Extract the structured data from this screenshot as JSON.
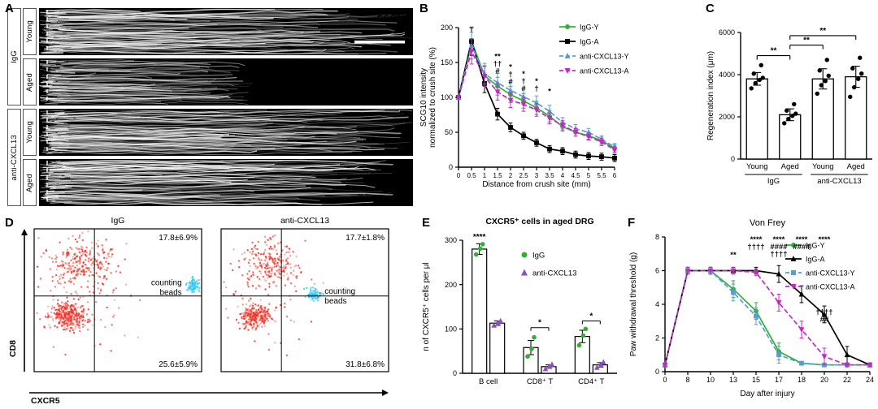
{
  "palette": {
    "green": "#2eb135",
    "black": "#000000",
    "blue": "#5b9bd5",
    "magenta": "#c527c5",
    "cyan": "#29c5f6",
    "red": "#ee3124",
    "purple": "#8f4fc4"
  },
  "panels": {
    "A": {
      "label": "A",
      "stain": "SCG10",
      "rows": [
        "Young",
        "Aged",
        "Young",
        "Aged"
      ],
      "groups": [
        {
          "name": "IgG"
        },
        {
          "name": "anti-CXCL13"
        }
      ],
      "row_params": [
        {
          "extent": 1.0,
          "brightness": 1.0,
          "seed": 11
        },
        {
          "extent": 0.55,
          "brightness": 0.75,
          "seed": 22
        },
        {
          "extent": 1.0,
          "brightness": 1.0,
          "seed": 33
        },
        {
          "extent": 0.95,
          "brightness": 1.05,
          "seed": 44
        }
      ]
    },
    "B": {
      "label": "B"
    },
    "C": {
      "label": "C"
    },
    "D": {
      "label": "D"
    },
    "E": {
      "label": "E"
    },
    "F": {
      "label": "F"
    }
  },
  "chart_data": [
    {
      "id": "B",
      "type": "line",
      "xlabel": "Distance from crush site (mm)",
      "ylabel_lines": [
        "SCG10 intensity",
        "normalized to crush site (%)"
      ],
      "x": [
        0,
        0.5,
        1,
        1.5,
        2,
        2.5,
        3,
        3.5,
        4,
        4.5,
        5,
        5.5,
        6
      ],
      "ylim": [
        0,
        200
      ],
      "yticks": [
        0,
        50,
        100,
        150,
        200
      ],
      "legend_position": "top-right",
      "series": [
        {
          "name": "IgG-Y",
          "color": "#2eb135",
          "marker": "circle",
          "style": "solid",
          "values": [
            100,
            181,
            131,
            116,
            104,
            95,
            85,
            73,
            58,
            50,
            45,
            38,
            27
          ]
        },
        {
          "name": "IgG-A",
          "color": "#000000",
          "marker": "square",
          "style": "solid",
          "values": [
            100,
            180,
            120,
            76,
            57,
            45,
            35,
            26,
            23,
            18,
            16,
            15,
            13
          ]
        },
        {
          "name": "anti-CXCL13-Y",
          "color": "#5b9bd5",
          "marker": "triangle",
          "style": "dashed",
          "values": [
            100,
            174,
            134,
            121,
            110,
            101,
            92,
            80,
            64,
            55,
            50,
            40,
            29
          ]
        },
        {
          "name": "anti-CXCL13-A",
          "color": "#c527c5",
          "marker": "triangle-down",
          "style": "dashed",
          "values": [
            100,
            166,
            130,
            108,
            96,
            90,
            82,
            70,
            60,
            50,
            44,
            36,
            25
          ]
        }
      ],
      "annotations": [
        {
          "xi": 3,
          "y": 155,
          "items": [
            {
              "t": "**",
              "c": "#2eb135"
            },
            {
              "t": "††",
              "c": "#29c5f6"
            },
            {
              "t": "#",
              "c": "#c527c5"
            }
          ]
        },
        {
          "xi": 4,
          "y": 140,
          "items": [
            {
              "t": "*",
              "c": "#2eb135"
            },
            {
              "t": "†",
              "c": "#29c5f6"
            },
            {
              "t": "#",
              "c": "#c527c5"
            }
          ]
        },
        {
          "xi": 5,
          "y": 130,
          "items": [
            {
              "t": "*",
              "c": "#2eb135"
            },
            {
              "t": "†",
              "c": "#29c5f6"
            },
            {
              "t": "#",
              "c": "#c527c5"
            }
          ]
        },
        {
          "xi": 6,
          "y": 120,
          "items": [
            {
              "t": "*",
              "c": "#29c5f6"
            },
            {
              "t": "†",
              "c": "#c527c5"
            }
          ]
        },
        {
          "xi": 7,
          "y": 105,
          "items": [
            {
              "t": "*",
              "c": "#29c5f6"
            }
          ]
        }
      ]
    },
    {
      "id": "C",
      "type": "bar",
      "ylabel": "Regeneration index (μm)",
      "ylim": [
        0,
        6000
      ],
      "yticks": [
        0,
        2000,
        4000,
        6000
      ],
      "categories": [
        "Young",
        "Aged",
        "Young",
        "Aged"
      ],
      "group_labels": [
        "IgG",
        "anti-CXCL13"
      ],
      "values": [
        3800,
        2100,
        3800,
        3900
      ],
      "errors": [
        300,
        280,
        480,
        500
      ],
      "points": [
        [
          3350,
          3600,
          3750,
          3850,
          4050,
          4450
        ],
        [
          1700,
          1900,
          2050,
          2150,
          2300,
          2600
        ],
        [
          3100,
          3500,
          3700,
          3950,
          4200,
          4700
        ],
        [
          2950,
          3400,
          3800,
          4050,
          4300,
          4800
        ]
      ],
      "significance": [
        {
          "a": 0,
          "b": 1,
          "y": 4900,
          "t": "**"
        },
        {
          "a": 1,
          "b": 2,
          "y": 5400,
          "t": "**"
        },
        {
          "a": 1,
          "b": 3,
          "y": 5850,
          "t": "**"
        }
      ]
    },
    {
      "id": "D",
      "type": "scatter",
      "xlabel": "CXCR5",
      "ylabel": "CD8",
      "plots": [
        {
          "title": "IgG",
          "pct_top_right": "17.8±6.9%",
          "pct_bottom_right": "25.6±5.9%",
          "beads_label": "counting beads",
          "beads_side": "left",
          "divider": {
            "x": 0.36,
            "y": 0.47
          },
          "clusters": [
            {
              "cx": 0.3,
              "cy": 0.24,
              "sx": 0.1,
              "sy": 0.085,
              "n": 260,
              "color": "#ee3124"
            },
            {
              "cx": 0.21,
              "cy": 0.61,
              "sx": 0.055,
              "sy": 0.05,
              "n": 330,
              "color": "#ee3124"
            },
            {
              "cx": 0.27,
              "cy": 0.45,
              "sx": 0.17,
              "sy": 0.24,
              "n": 80,
              "color": "#ee3124"
            },
            {
              "cx": 0.95,
              "cy": 0.4,
              "sx": 0.02,
              "sy": 0.022,
              "n": 90,
              "color": "#29c5f6"
            }
          ]
        },
        {
          "title": "anti-CXCL13",
          "pct_top_right": "17.7±1.8%",
          "pct_bottom_right": "31.8±6.8%",
          "beads_label": "counting beads",
          "beads_side": "right",
          "divider": {
            "x": 0.36,
            "y": 0.47
          },
          "clusters": [
            {
              "cx": 0.3,
              "cy": 0.25,
              "sx": 0.095,
              "sy": 0.08,
              "n": 230,
              "color": "#ee3124"
            },
            {
              "cx": 0.21,
              "cy": 0.61,
              "sx": 0.045,
              "sy": 0.042,
              "n": 250,
              "color": "#ee3124"
            },
            {
              "cx": 0.27,
              "cy": 0.45,
              "sx": 0.17,
              "sy": 0.24,
              "n": 70,
              "color": "#ee3124"
            },
            {
              "cx": 0.55,
              "cy": 0.46,
              "sx": 0.02,
              "sy": 0.022,
              "n": 90,
              "color": "#29c5f6"
            }
          ]
        }
      ]
    },
    {
      "id": "E",
      "type": "bar",
      "title": "CXCR5⁺ cells in aged DRG",
      "ylabel": "n of CXCR5⁺ cells per μl",
      "ylim": [
        0,
        300
      ],
      "yticks": [
        0,
        100,
        200,
        300
      ],
      "categories": [
        "B cell",
        "CD8⁺ T",
        "CD4⁺ T"
      ],
      "series": [
        {
          "name": "IgG",
          "marker": "circle",
          "color": "#2eb135",
          "values": [
            280,
            58,
            83
          ],
          "errors": [
            12,
            16,
            14
          ],
          "points": [
            [
              268,
              281,
              291
            ],
            [
              38,
              55,
              81
            ],
            [
              63,
              85,
              100
            ]
          ]
        },
        {
          "name": "anti-CXCL13",
          "marker": "triangle",
          "color": "#8f4fc4",
          "values": [
            113,
            15,
            19
          ],
          "errors": [
            5,
            4,
            5
          ],
          "points": [
            [
              108,
              113,
              118
            ],
            [
              10,
              15,
              20
            ],
            [
              13,
              19,
              25
            ]
          ]
        }
      ],
      "significance": [
        {
          "group": 0,
          "t": "****",
          "y": 298,
          "bracket": false
        },
        {
          "group": 1,
          "t": "*",
          "y": 103,
          "bracket": true
        },
        {
          "group": 2,
          "t": "*",
          "y": 118,
          "bracket": true
        }
      ]
    },
    {
      "id": "F",
      "type": "line",
      "title": "Von Frey",
      "xlabel": "Day after injury",
      "ylabel_lines": [
        "Paw withdrawal threshold (g)"
      ],
      "x": [
        0,
        8,
        10,
        13,
        15,
        17,
        18,
        20,
        22,
        24
      ],
      "ylim": [
        0,
        8
      ],
      "yticks": [
        0,
        2,
        4,
        6,
        8
      ],
      "series": [
        {
          "name": "IgG-Y",
          "color": "#2eb135",
          "marker": "circle",
          "style": "solid",
          "values": [
            0.4,
            6,
            6,
            4.9,
            3.6,
            1.2,
            0.5,
            0.4,
            0.4,
            0.4
          ]
        },
        {
          "name": "IgG-A",
          "color": "#000000",
          "marker": "triangle",
          "style": "solid",
          "values": [
            0.4,
            6,
            6,
            6,
            6,
            5.8,
            4.6,
            3.4,
            1.0,
            0.4
          ]
        },
        {
          "name": "anti-CXCL13-Y",
          "color": "#5b9bd5",
          "marker": "square",
          "style": "dashed",
          "values": [
            0.4,
            6,
            6,
            4.7,
            3.3,
            1.0,
            0.5,
            0.4,
            0.4,
            0.4
          ]
        },
        {
          "name": "anti-CXCL13-A",
          "color": "#c527c5",
          "marker": "triangle-down",
          "style": "dashed",
          "values": [
            0.4,
            6,
            6,
            6,
            5.9,
            4.1,
            2.5,
            0.9,
            0.4,
            0.4
          ]
        }
      ],
      "annotations": [
        {
          "xi": 3,
          "y": 6.8,
          "items": [
            {
              "t": "**",
              "c": "#2eb135"
            }
          ]
        },
        {
          "xi": 4,
          "y": 7.7,
          "items": [
            {
              "t": "****",
              "c": "#2eb135"
            },
            {
              "t": "††††",
              "c": "#29c5f6"
            }
          ]
        },
        {
          "xi": 5,
          "y": 7.7,
          "items": [
            {
              "t": "****",
              "c": "#2eb135"
            },
            {
              "t": "####",
              "c": "#c527c5"
            },
            {
              "t": "††††",
              "c": "#29c5f6"
            }
          ]
        },
        {
          "xi": 6,
          "y": 7.7,
          "items": [
            {
              "t": "****",
              "c": "#2eb135"
            },
            {
              "t": "####",
              "c": "#c527c5"
            }
          ]
        },
        {
          "xi": 7,
          "y": 7.7,
          "items": [
            {
              "t": "****",
              "c": "#2eb135"
            }
          ]
        },
        {
          "xi": 7,
          "y": 3.4,
          "items": [
            {
              "t": "††††",
              "c": "#29c5f6"
            },
            {
              "t": "##",
              "c": "#c527c5"
            }
          ]
        }
      ]
    }
  ]
}
